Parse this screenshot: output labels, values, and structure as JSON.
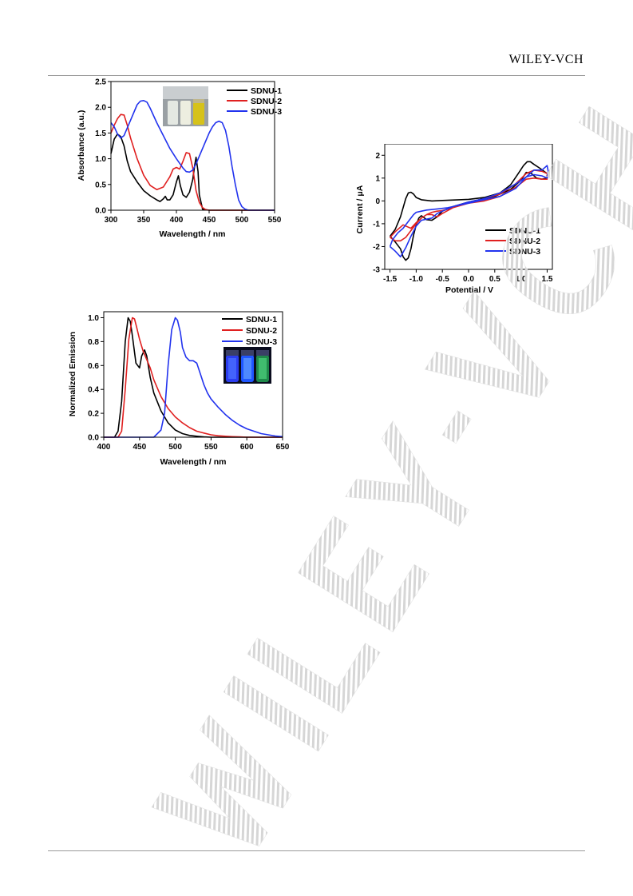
{
  "header": {
    "publisher": "WILEY-VCH"
  },
  "watermark": {
    "text": "WILEY-VCH"
  },
  "chart_data": [
    {
      "id": "absorption",
      "type": "line",
      "xlabel": "Wavelength / nm",
      "ylabel": "Absorbance (a.u.)",
      "xlim": [
        300,
        550
      ],
      "ylim": [
        0,
        2.5
      ],
      "xticks": [
        "300",
        "350",
        "400",
        "450",
        "500",
        "550"
      ],
      "yticks": [
        "0.0",
        "0.5",
        "1.0",
        "1.5",
        "2.0",
        "2.5"
      ],
      "legend_position": "top-right",
      "inset_photo": "vials-under-daylight",
      "series": [
        {
          "name": "SDNU-1",
          "color": "#000000",
          "x": [
            300,
            305,
            310,
            315,
            320,
            325,
            330,
            340,
            350,
            360,
            370,
            375,
            380,
            383,
            386,
            390,
            395,
            400,
            403,
            406,
            410,
            415,
            420,
            425,
            428,
            430,
            433,
            435,
            440,
            450,
            500,
            550
          ],
          "y": [
            1.1,
            1.38,
            1.48,
            1.43,
            1.25,
            0.95,
            0.75,
            0.55,
            0.38,
            0.28,
            0.2,
            0.17,
            0.22,
            0.27,
            0.2,
            0.2,
            0.3,
            0.55,
            0.67,
            0.48,
            0.3,
            0.25,
            0.35,
            0.6,
            0.88,
            1.03,
            0.75,
            0.3,
            0.02,
            0,
            0,
            0
          ]
        },
        {
          "name": "SDNU-2",
          "color": "#e02020",
          "x": [
            300,
            305,
            310,
            315,
            320,
            325,
            330,
            340,
            350,
            360,
            370,
            380,
            390,
            395,
            400,
            405,
            410,
            415,
            420,
            425,
            430,
            435,
            440,
            445,
            450,
            460,
            500,
            550
          ],
          "y": [
            1.5,
            1.65,
            1.78,
            1.86,
            1.85,
            1.65,
            1.4,
            1.0,
            0.68,
            0.48,
            0.4,
            0.45,
            0.65,
            0.8,
            0.83,
            0.8,
            0.95,
            1.12,
            1.1,
            0.82,
            0.38,
            0.15,
            0.05,
            0.01,
            0,
            0,
            0,
            0
          ]
        },
        {
          "name": "SDNU-3",
          "color": "#2233ee",
          "x": [
            300,
            305,
            310,
            315,
            320,
            330,
            340,
            345,
            350,
            355,
            360,
            370,
            380,
            390,
            400,
            410,
            415,
            420,
            425,
            430,
            440,
            450,
            455,
            460,
            465,
            470,
            475,
            480,
            485,
            490,
            495,
            500,
            505,
            510,
            520,
            550
          ],
          "y": [
            1.7,
            1.62,
            1.48,
            1.4,
            1.45,
            1.75,
            2.05,
            2.12,
            2.13,
            2.1,
            1.98,
            1.7,
            1.45,
            1.2,
            1.0,
            0.82,
            0.75,
            0.74,
            0.78,
            0.9,
            1.2,
            1.5,
            1.62,
            1.7,
            1.73,
            1.7,
            1.55,
            1.25,
            0.85,
            0.5,
            0.2,
            0.07,
            0.02,
            0,
            0,
            0
          ]
        }
      ]
    },
    {
      "id": "emission",
      "type": "line",
      "xlabel": "Wavelength / nm",
      "ylabel": "Normalized Emission",
      "xlim": [
        400,
        650
      ],
      "ylim": [
        0,
        1.05
      ],
      "xticks": [
        "400",
        "450",
        "500",
        "550",
        "600",
        "650"
      ],
      "yticks": [
        "0.0",
        "0.2",
        "0.4",
        "0.6",
        "0.8",
        "1.0"
      ],
      "legend_position": "top-right",
      "inset_photo": "vials-under-uv-light",
      "series": [
        {
          "name": "SDNU-1",
          "color": "#000000",
          "x": [
            400,
            415,
            420,
            425,
            430,
            434,
            437,
            440,
            445,
            450,
            453,
            457,
            460,
            465,
            470,
            480,
            490,
            500,
            510,
            520,
            530,
            540,
            550,
            650
          ],
          "y": [
            0,
            0,
            0.05,
            0.3,
            0.8,
            1.0,
            0.97,
            0.85,
            0.62,
            0.58,
            0.68,
            0.73,
            0.68,
            0.5,
            0.37,
            0.22,
            0.12,
            0.06,
            0.03,
            0.015,
            0.008,
            0.003,
            0,
            0
          ]
        },
        {
          "name": "SDNU-2",
          "color": "#e02020",
          "x": [
            400,
            420,
            425,
            430,
            435,
            440,
            443,
            446,
            450,
            455,
            460,
            465,
            470,
            480,
            490,
            500,
            510,
            520,
            530,
            540,
            550,
            560,
            570,
            580,
            590,
            600,
            650
          ],
          "y": [
            0,
            0,
            0.05,
            0.4,
            0.82,
            1.0,
            0.99,
            0.92,
            0.82,
            0.72,
            0.65,
            0.58,
            0.48,
            0.34,
            0.24,
            0.17,
            0.12,
            0.08,
            0.05,
            0.035,
            0.02,
            0.012,
            0.008,
            0.005,
            0.003,
            0,
            0
          ]
        },
        {
          "name": "SDNU-3",
          "color": "#2233ee",
          "x": [
            400,
            470,
            480,
            485,
            490,
            495,
            500,
            503,
            507,
            510,
            515,
            520,
            525,
            530,
            535,
            540,
            545,
            550,
            560,
            570,
            580,
            590,
            600,
            610,
            620,
            630,
            640,
            650
          ],
          "y": [
            0,
            0,
            0.06,
            0.2,
            0.6,
            0.9,
            1.0,
            0.98,
            0.88,
            0.75,
            0.67,
            0.64,
            0.64,
            0.62,
            0.53,
            0.44,
            0.37,
            0.32,
            0.25,
            0.19,
            0.14,
            0.1,
            0.07,
            0.05,
            0.03,
            0.02,
            0.01,
            0.005
          ]
        }
      ]
    },
    {
      "id": "cyclic-voltammetry",
      "type": "line",
      "xlabel": "Potential / V",
      "ylabel": "Current / μA",
      "xlim": [
        -1.6,
        1.6
      ],
      "ylim": [
        -3,
        2.5
      ],
      "xticks": [
        "-1.5",
        "-1.0",
        "-0.5",
        "0.0",
        "0.5",
        "1.0",
        "1.5"
      ],
      "yticks": [
        "-3",
        "-2",
        "-1",
        "0",
        "1",
        "2"
      ],
      "legend_position": "bottom-right",
      "series": [
        {
          "name": "SDNU-1",
          "color": "#000000",
          "x": [
            -1.5,
            -1.4,
            -1.3,
            -1.2,
            -1.15,
            -1.1,
            -1.05,
            -1.0,
            -0.9,
            -0.7,
            -0.5,
            0.0,
            0.3,
            0.6,
            0.8,
            0.95,
            1.05,
            1.12,
            1.18,
            1.25,
            1.35,
            1.5,
            1.5,
            1.4,
            1.3,
            1.2,
            1.1,
            1.0,
            0.8,
            0.5,
            0.0,
            -0.3,
            -0.5,
            -0.6,
            -0.7,
            -0.8,
            -0.9,
            -0.95,
            -1.0,
            -1.05,
            -1.1,
            -1.15,
            -1.2,
            -1.25,
            -1.3,
            -1.4,
            -1.5
          ],
          "y": [
            -1.55,
            -1.25,
            -0.7,
            0.1,
            0.35,
            0.38,
            0.3,
            0.15,
            0.05,
            0.0,
            0.02,
            0.07,
            0.15,
            0.35,
            0.7,
            1.2,
            1.55,
            1.72,
            1.72,
            1.6,
            1.45,
            1.2,
            1.0,
            0.95,
            1.0,
            1.2,
            1.25,
            0.9,
            0.5,
            0.2,
            -0.05,
            -0.25,
            -0.45,
            -0.7,
            -0.85,
            -0.82,
            -0.65,
            -0.75,
            -1.05,
            -1.5,
            -2.1,
            -2.5,
            -2.6,
            -2.45,
            -2.1,
            -1.8,
            -1.55
          ]
        },
        {
          "name": "SDNU-2",
          "color": "#e02020",
          "x": [
            -1.5,
            -1.4,
            -1.3,
            -1.25,
            -1.2,
            -1.1,
            -1.0,
            -0.9,
            -0.8,
            -0.7,
            -0.6,
            -0.5,
            -0.3,
            0.0,
            0.3,
            0.6,
            0.9,
            1.1,
            1.25,
            1.4,
            1.5,
            1.5,
            1.4,
            1.25,
            1.1,
            0.9,
            0.6,
            0.3,
            0.0,
            -0.3,
            -0.5,
            -0.6,
            -0.7,
            -0.8,
            -0.9,
            -1.0,
            -1.1,
            -1.2,
            -1.3,
            -1.4,
            -1.5
          ],
          "y": [
            -1.6,
            -1.35,
            -1.15,
            -1.05,
            -1.1,
            -1.2,
            -0.95,
            -0.75,
            -0.6,
            -0.5,
            -0.45,
            -0.42,
            -0.3,
            -0.1,
            0.1,
            0.3,
            0.75,
            1.2,
            1.35,
            1.3,
            1.2,
            0.95,
            0.95,
            1.0,
            0.95,
            0.6,
            0.2,
            0.0,
            -0.1,
            -0.3,
            -0.55,
            -0.7,
            -0.6,
            -0.6,
            -0.75,
            -1.0,
            -1.3,
            -1.6,
            -1.75,
            -1.75,
            -1.6
          ]
        },
        {
          "name": "SDNU-3",
          "color": "#2233ee",
          "x": [
            -1.5,
            -1.45,
            -1.35,
            -1.25,
            -1.15,
            -1.05,
            -1.0,
            -0.9,
            -0.8,
            -0.6,
            -0.4,
            0.0,
            0.3,
            0.6,
            0.9,
            1.1,
            1.25,
            1.4,
            1.5,
            1.52,
            1.5,
            1.4,
            1.25,
            1.1,
            0.9,
            0.6,
            0.3,
            0.0,
            -0.3,
            -0.5,
            -0.6,
            -0.7,
            -0.8,
            -0.9,
            -1.0,
            -1.1,
            -1.2,
            -1.3,
            -1.4,
            -1.5
          ],
          "y": [
            -2.0,
            -1.7,
            -1.4,
            -1.2,
            -0.9,
            -0.6,
            -0.5,
            -0.45,
            -0.4,
            -0.35,
            -0.3,
            -0.1,
            0.05,
            0.2,
            0.55,
            1.05,
            1.35,
            1.35,
            1.55,
            1.3,
            1.0,
            1.1,
            1.15,
            1.05,
            0.75,
            0.35,
            0.1,
            -0.05,
            -0.25,
            -0.45,
            -0.55,
            -0.75,
            -0.8,
            -0.85,
            -1.1,
            -1.55,
            -2.05,
            -2.45,
            -2.2,
            -2.0
          ]
        }
      ]
    }
  ]
}
